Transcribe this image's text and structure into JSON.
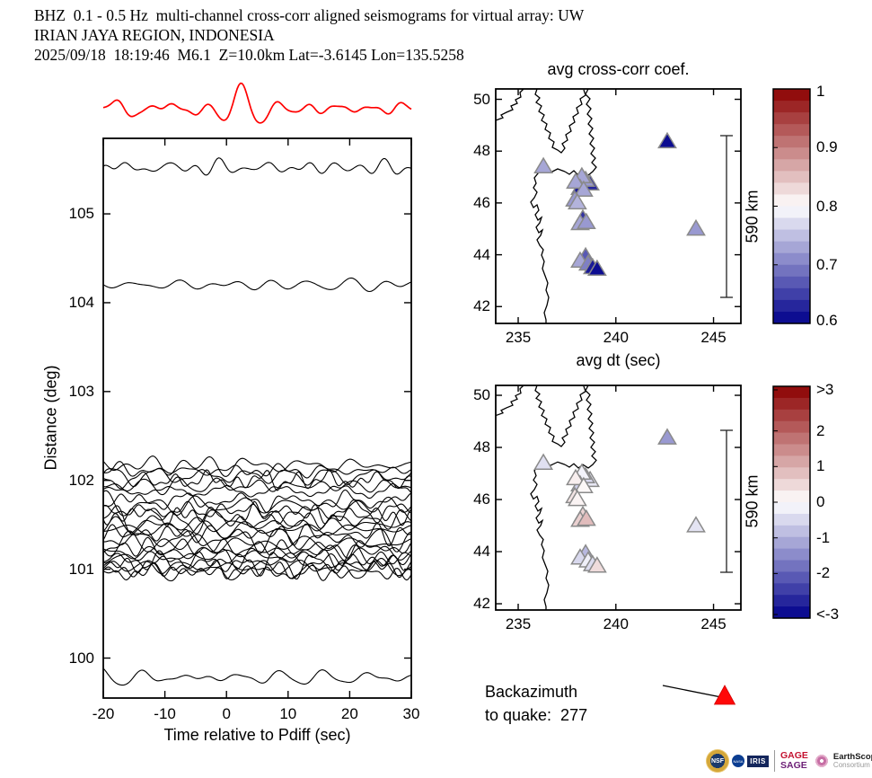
{
  "header": {
    "line1": "BHZ  0.1 - 0.5 Hz  multi-channel cross-corr aligned seismograms for virtual array: UW",
    "line2": "IRIAN JAYA REGION, INDONESIA",
    "line3": "2025/09/18  18:19:46  M6.1  Z=10.0km Lat=-3.6145 Lon=135.5258"
  },
  "chart_data": [
    {
      "id": "aligned-seismograms",
      "type": "line",
      "title": "",
      "xlabel": "Time relative to Pdiff (sec)",
      "ylabel": "Distance (deg)",
      "xlim": [
        -20,
        30
      ],
      "ylim": [
        99.55,
        105.85
      ],
      "xticks": [
        -20,
        -10,
        0,
        10,
        20,
        30
      ],
      "yticks": [
        100,
        101,
        102,
        103,
        104,
        105
      ],
      "grid": false,
      "trace_color": "#000000",
      "stack_trace": {
        "color": "#ff0000",
        "burst_center_sec": 2.4,
        "note": "array beam plotted above axes"
      },
      "traces": [
        {
          "distance": 105.52,
          "amplitude": 0.085
        },
        {
          "distance": 104.2,
          "amplitude": 0.075
        },
        {
          "distance": 102.17,
          "amplitude": 0.1
        },
        {
          "distance": 102.11,
          "amplitude": 0.09
        },
        {
          "distance": 102.05,
          "amplitude": 0.1
        },
        {
          "distance": 102.0,
          "amplitude": 0.11
        },
        {
          "distance": 101.94,
          "amplitude": 0.09
        },
        {
          "distance": 101.88,
          "amplitude": 0.1
        },
        {
          "distance": 101.77,
          "amplitude": 0.11
        },
        {
          "distance": 101.72,
          "amplitude": 0.12
        },
        {
          "distance": 101.66,
          "amplitude": 0.11
        },
        {
          "distance": 101.61,
          "amplitude": 0.12
        },
        {
          "distance": 101.55,
          "amplitude": 0.13
        },
        {
          "distance": 101.5,
          "amplitude": 0.12
        },
        {
          "distance": 101.45,
          "amplitude": 0.11
        },
        {
          "distance": 101.4,
          "amplitude": 0.12
        },
        {
          "distance": 101.34,
          "amplitude": 0.13
        },
        {
          "distance": 101.29,
          "amplitude": 0.11
        },
        {
          "distance": 101.24,
          "amplitude": 0.12
        },
        {
          "distance": 101.19,
          "amplitude": 0.11
        },
        {
          "distance": 101.14,
          "amplitude": 0.12
        },
        {
          "distance": 101.1,
          "amplitude": 0.11
        },
        {
          "distance": 101.06,
          "amplitude": 0.12
        },
        {
          "distance": 101.03,
          "amplitude": 0.1
        },
        {
          "distance": 100.99,
          "amplitude": 0.11
        },
        {
          "distance": 100.96,
          "amplitude": 0.1
        },
        {
          "distance": 99.78,
          "amplitude": 0.09
        }
      ]
    },
    {
      "id": "map-avg-cross-corr",
      "type": "scatter",
      "title": "avg cross-corr coef.",
      "xlim": [
        233.85,
        246.4
      ],
      "ylim": [
        41.35,
        50.4
      ],
      "xticks": [
        235,
        240,
        245
      ],
      "yticks": [
        42,
        44,
        46,
        48,
        50
      ],
      "marker": "triangle",
      "value_key": "cc",
      "scale_bar": {
        "label": "590 km"
      },
      "colorbar": {
        "vmin": 0.6,
        "vmax": 1.0,
        "ticks": [
          {
            "label": "1",
            "value": 1.0
          },
          {
            "label": "0.9",
            "value": 0.9
          },
          {
            "label": "0.8",
            "value": 0.8
          },
          {
            "label": "0.7",
            "value": 0.7
          },
          {
            "label": "0.6",
            "value": 0.6
          }
        ]
      }
    },
    {
      "id": "map-avg-dt",
      "type": "scatter",
      "title": "avg dt (sec)",
      "xlim": [
        233.85,
        246.4
      ],
      "ylim": [
        41.76,
        50.38
      ],
      "xticks": [
        235,
        240,
        245
      ],
      "yticks": [
        42,
        44,
        46,
        48,
        50
      ],
      "marker": "triangle",
      "value_key": "dt",
      "scale_bar": {
        "label": "590 km"
      },
      "colorbar": {
        "vmin": -3.25,
        "vmax": 3.25,
        "ticks": [
          {
            "label": ">3",
            "value": 3.15
          },
          {
            "label": "2",
            "value": 2
          },
          {
            "label": "1",
            "value": 1
          },
          {
            "label": "0",
            "value": 0
          },
          {
            "label": "-1",
            "value": -1
          },
          {
            "label": "-2",
            "value": -2
          },
          {
            "label": "<-3",
            "value": -3.15
          }
        ]
      }
    }
  ],
  "stations": [
    {
      "lon": 236.29,
      "lat": 47.42,
      "cc": 0.73,
      "dt": -0.4
    },
    {
      "lon": 242.63,
      "lat": 48.39,
      "cc": 0.61,
      "dt": -1.3
    },
    {
      "lon": 238.68,
      "lat": 46.76,
      "cc": 0.63,
      "dt": -0.3
    },
    {
      "lon": 238.45,
      "lat": 46.9,
      "cc": 0.72,
      "dt": -0.5
    },
    {
      "lon": 238.26,
      "lat": 47.04,
      "cc": 0.73,
      "dt": -0.15
    },
    {
      "lon": 238.17,
      "lat": 46.59,
      "cc": 0.62,
      "dt": -0.6
    },
    {
      "lon": 237.94,
      "lat": 46.83,
      "cc": 0.73,
      "dt": 0.2
    },
    {
      "lon": 238.35,
      "lat": 46.52,
      "cc": 0.73,
      "dt": 0.1
    },
    {
      "lon": 237.9,
      "lat": 46.14,
      "cc": 0.72,
      "dt": 0.35
    },
    {
      "lon": 238.03,
      "lat": 46.03,
      "cc": 0.74,
      "dt": 0.15
    },
    {
      "lon": 238.31,
      "lat": 45.41,
      "cc": 0.64,
      "dt": 0.55
    },
    {
      "lon": 238.17,
      "lat": 45.23,
      "cc": 0.73,
      "dt": 0.6
    },
    {
      "lon": 238.49,
      "lat": 45.27,
      "cc": 0.72,
      "dt": 0.85
    },
    {
      "lon": 238.45,
      "lat": 43.95,
      "cc": 0.67,
      "dt": -0.9
    },
    {
      "lon": 238.17,
      "lat": 43.78,
      "cc": 0.73,
      "dt": -0.5
    },
    {
      "lon": 238.58,
      "lat": 43.67,
      "cc": 0.7,
      "dt": -0.2
    },
    {
      "lon": 238.81,
      "lat": 43.53,
      "cc": 0.62,
      "dt": -0.45
    },
    {
      "lon": 239.04,
      "lat": 43.47,
      "cc": 0.61,
      "dt": 0.45
    },
    {
      "lon": 244.1,
      "lat": 45.02,
      "cc": 0.72,
      "dt": -0.35
    }
  ],
  "backazimuth": {
    "line1": "Backazimuth",
    "line2": "to quake:  277",
    "value_deg": 277,
    "marker_color": "#ff0808"
  },
  "colors": {
    "colormap_low": "#00008b",
    "colormap_mid": "#ffffff",
    "colormap_high": "#8b0000",
    "marker_edge": "#8a8a8a",
    "trace": "#000000",
    "stack": "#ff0000"
  },
  "logos": {
    "nsf": "NSF",
    "nasa": "NASA",
    "iris": "IRIS",
    "gage": "GAGE",
    "sage": "SAGE",
    "earthscope_line1": "EarthScope",
    "earthscope_line2": "Consortium"
  }
}
